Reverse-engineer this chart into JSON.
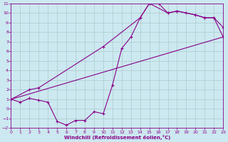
{
  "xlabel": "Windchill (Refroidissement éolien,°C)",
  "bg_color": "#cce8f0",
  "grid_color": "#aacccc",
  "line_color": "#880088",
  "xlim": [
    0,
    23
  ],
  "ylim": [
    -2,
    11
  ],
  "xticks": [
    0,
    1,
    2,
    3,
    4,
    5,
    6,
    7,
    8,
    9,
    10,
    11,
    12,
    13,
    14,
    15,
    16,
    17,
    18,
    19,
    20,
    21,
    22,
    23
  ],
  "yticks": [
    -2,
    -1,
    0,
    1,
    2,
    3,
    4,
    5,
    6,
    7,
    8,
    9,
    10,
    11
  ],
  "curve1_x": [
    0,
    1,
    2,
    3,
    4,
    5,
    6,
    7,
    8,
    9,
    10,
    11,
    12,
    13,
    14,
    15,
    16,
    17,
    18,
    19,
    20,
    21,
    22,
    23
  ],
  "curve1_y": [
    1,
    0.7,
    1.1,
    0.9,
    0.7,
    -1.3,
    -1.7,
    -1.2,
    -1.2,
    -0.3,
    -0.5,
    2.5,
    6.3,
    7.5,
    9.5,
    11.0,
    11.0,
    10.0,
    10.2,
    10.0,
    9.8,
    9.5,
    9.5,
    8.5
  ],
  "curve2_x": [
    0,
    2,
    3,
    10,
    14,
    15,
    17,
    18,
    20,
    21,
    22,
    23
  ],
  "curve2_y": [
    1,
    2.0,
    2.2,
    6.5,
    9.5,
    11.0,
    10.0,
    10.2,
    9.8,
    9.5,
    9.5,
    7.5
  ],
  "curve3_x": [
    0,
    23
  ],
  "curve3_y": [
    1,
    7.5
  ]
}
